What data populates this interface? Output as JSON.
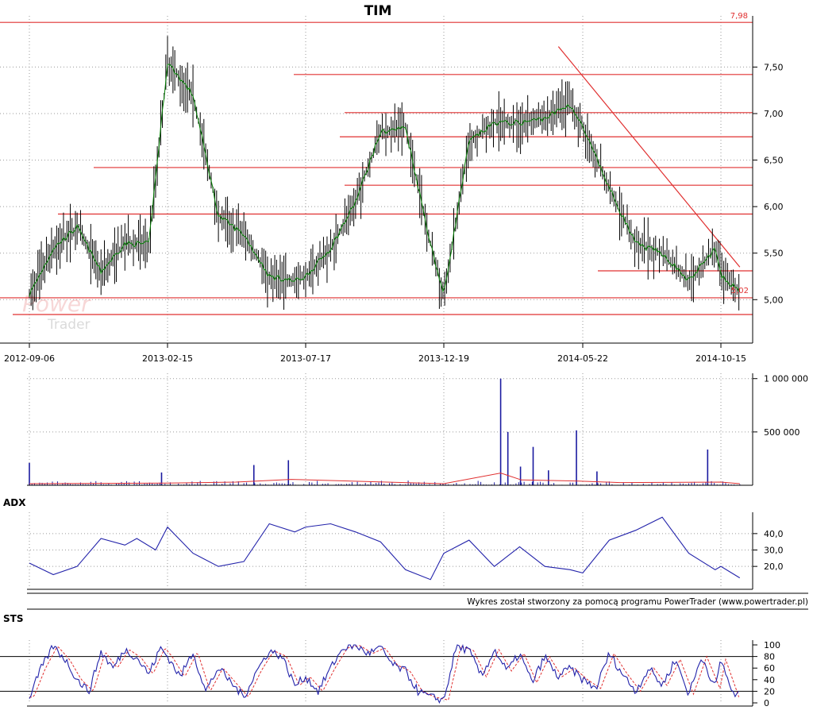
{
  "title": "TIM",
  "footer_note": "Wykres został stworzony za pomocą programu PowerTrader (www.powertrader.pl)",
  "watermark": {
    "line1": "Power",
    "line2": "Trader"
  },
  "colors": {
    "candle": "#000000",
    "moving_average": "#008000",
    "levels": "#e03030",
    "volume": "#1a1aa0",
    "volume_ma": "#e03030",
    "adx": "#2222aa",
    "sts_k": "#2222aa",
    "sts_d": "#e03030",
    "grid": "#9a9a9a"
  },
  "chart_data": [
    {
      "type": "line",
      "panel": "price",
      "title": "TIM",
      "x_tick_labels": [
        "2012-09-06",
        "2013-02-15",
        "2013-07-17",
        "2013-12-19",
        "2014-05-22",
        "2014-10-15"
      ],
      "y_tick_labels": [
        "7,50",
        "7,00",
        "6,50",
        "6,00",
        "5,50",
        "5,00"
      ],
      "ylim": [
        4.55,
        8.05
      ],
      "grid": true,
      "series": [
        {
          "style": "high-low bars with green moving average",
          "x": [
            "2012-09-06",
            "2012-10-04",
            "2012-11-01",
            "2012-11-29",
            "2012-12-27",
            "2013-01-24",
            "2013-02-15",
            "2013-03-15",
            "2013-04-12",
            "2013-05-10",
            "2013-06-07",
            "2013-07-05",
            "2013-07-17",
            "2013-08-14",
            "2013-09-11",
            "2013-10-09",
            "2013-11-06",
            "2013-12-04",
            "2013-12-19",
            "2014-01-16",
            "2014-02-13",
            "2014-03-13",
            "2014-04-10",
            "2014-05-08",
            "2014-05-22",
            "2014-06-19",
            "2014-07-17",
            "2014-08-14",
            "2014-09-11",
            "2014-10-09",
            "2014-10-15",
            "2014-11-04"
          ],
          "values": [
            5.05,
            5.55,
            5.78,
            5.3,
            5.6,
            5.6,
            7.55,
            7.2,
            5.9,
            5.7,
            5.25,
            5.2,
            5.25,
            5.55,
            6.05,
            6.8,
            6.85,
            5.6,
            5.05,
            6.7,
            6.9,
            6.9,
            6.95,
            7.1,
            6.85,
            6.2,
            5.6,
            5.5,
            5.2,
            5.55,
            5.25,
            5.1
          ]
        }
      ],
      "horizontal_levels": [
        7.98,
        7.42,
        7.01,
        6.75,
        6.42,
        6.23,
        5.92,
        5.31,
        5.02,
        4.84
      ],
      "trendline": {
        "from": [
          "2014-04-25",
          7.72
        ],
        "to": [
          "2014-11-04",
          5.35
        ]
      },
      "annotations": [
        "7,98",
        "5,02"
      ]
    },
    {
      "type": "bar",
      "panel": "volume",
      "y_tick_labels": [
        "1 000 000",
        "500 000"
      ],
      "ylim": [
        0,
        1050000
      ],
      "spikes": [
        {
          "x": "2012-09-06",
          "value": 210000
        },
        {
          "x": "2013-02-08",
          "value": 120000
        },
        {
          "x": "2013-05-21",
          "value": 190000
        },
        {
          "x": "2013-06-28",
          "value": 235000
        },
        {
          "x": "2014-02-20",
          "value": 1000000
        },
        {
          "x": "2014-02-28",
          "value": 500000
        },
        {
          "x": "2014-03-14",
          "value": 175000
        },
        {
          "x": "2014-03-28",
          "value": 360000
        },
        {
          "x": "2014-04-14",
          "value": 140000
        },
        {
          "x": "2014-05-15",
          "value": 515000
        },
        {
          "x": "2014-06-06",
          "value": 130000
        },
        {
          "x": "2014-10-01",
          "value": 335000
        }
      ],
      "moving_average": {
        "x": [
          "2012-09-06",
          "2013-02-15",
          "2013-05-01",
          "2013-07-01",
          "2013-12-19",
          "2014-02-20",
          "2014-03-15",
          "2014-05-15",
          "2014-06-30",
          "2014-10-15",
          "2014-11-04"
        ],
        "values": [
          15000,
          20000,
          30000,
          55000,
          15000,
          115000,
          50000,
          40000,
          25000,
          30000,
          15000
        ]
      }
    },
    {
      "type": "line",
      "panel": "indicator",
      "title": "ADX",
      "y_tick_labels": [
        "40,0",
        "30,0",
        "20,0"
      ],
      "ylim": [
        7,
        53
      ],
      "series": [
        {
          "name": "ADX",
          "x": [
            "2012-09-06",
            "2012-10-04",
            "2012-11-01",
            "2012-11-29",
            "2012-12-27",
            "2013-01-10",
            "2013-02-01",
            "2013-02-15",
            "2013-03-15",
            "2013-04-12",
            "2013-05-10",
            "2013-06-07",
            "2013-07-05",
            "2013-07-17",
            "2013-08-14",
            "2013-09-11",
            "2013-10-09",
            "2013-11-06",
            "2013-12-04",
            "2013-12-19",
            "2014-01-16",
            "2014-02-13",
            "2014-03-13",
            "2014-04-10",
            "2014-05-08",
            "2014-05-22",
            "2014-06-19",
            "2014-07-17",
            "2014-08-14",
            "2014-09-11",
            "2014-10-09",
            "2014-10-15",
            "2014-11-04"
          ],
          "values": [
            22,
            15,
            20,
            37,
            33,
            37,
            30,
            44,
            28,
            20,
            23,
            46,
            41,
            44,
            46,
            41,
            35,
            18,
            12,
            28,
            36,
            20,
            32,
            20,
            18,
            16,
            36,
            42,
            50,
            28,
            18,
            20,
            13
          ]
        }
      ]
    },
    {
      "type": "line",
      "panel": "indicator",
      "title": "STS",
      "y_tick_labels": [
        "100",
        "80",
        "60",
        "40",
        "20",
        "0"
      ],
      "ylim": [
        0,
        100
      ],
      "reference_lines": [
        80,
        20
      ],
      "series": [
        {
          "name": "STS",
          "x": [
            "2012-09-06",
            "2012-09-20",
            "2012-10-04",
            "2012-10-18",
            "2012-11-01",
            "2012-11-15",
            "2012-11-29",
            "2012-12-13",
            "2012-12-27",
            "2013-01-10",
            "2013-01-24",
            "2013-02-07",
            "2013-02-15",
            "2013-03-01",
            "2013-03-15",
            "2013-03-29",
            "2013-04-12",
            "2013-04-26",
            "2013-05-10",
            "2013-05-24",
            "2013-06-07",
            "2013-06-21",
            "2013-07-05",
            "2013-07-17",
            "2013-07-31",
            "2013-08-14",
            "2013-08-28",
            "2013-09-11",
            "2013-09-25",
            "2013-10-09",
            "2013-10-23",
            "2013-11-06",
            "2013-11-20",
            "2013-12-04",
            "2013-12-19",
            "2014-01-02",
            "2014-01-16",
            "2014-01-30",
            "2014-02-13",
            "2014-02-27",
            "2014-03-13",
            "2014-03-27",
            "2014-04-10",
            "2014-04-24",
            "2014-05-08",
            "2014-05-22",
            "2014-06-05",
            "2014-06-19",
            "2014-07-03",
            "2014-07-17",
            "2014-07-31",
            "2014-08-14",
            "2014-08-28",
            "2014-09-11",
            "2014-09-25",
            "2014-10-09",
            "2014-10-15",
            "2014-10-29",
            "2014-11-04"
          ],
          "values": [
            10,
            60,
            98,
            75,
            40,
            20,
            88,
            60,
            92,
            78,
            50,
            95,
            80,
            45,
            88,
            20,
            60,
            35,
            10,
            55,
            90,
            80,
            30,
            45,
            20,
            60,
            95,
            99,
            85,
            95,
            65,
            55,
            20,
            10,
            5,
            98,
            90,
            45,
            92,
            55,
            85,
            35,
            80,
            45,
            60,
            40,
            25,
            85,
            50,
            20,
            60,
            30,
            75,
            15,
            80,
            25,
            75,
            10,
            20
          ]
        }
      ]
    }
  ]
}
